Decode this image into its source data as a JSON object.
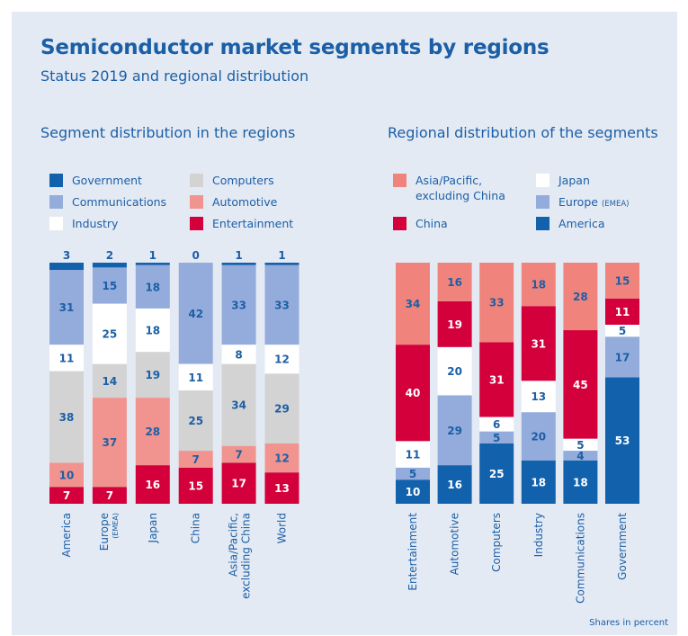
{
  "title": "Semiconductor market segments by regions",
  "subtitle": "Status 2019 and regional distribution",
  "footnote": "Shares in percent",
  "colors": {
    "Government": "#1261ad",
    "Communications": "#94acdb",
    "Industry": "#ffffff",
    "Computers": "#d3d3d3",
    "Automotive": "#f1948f",
    "Entertainment": "#d4003b",
    "Asia/Pacific, excluding China": "#f0847d",
    "Japan": "#ffffff",
    "China": "#d4003b",
    "Europe (EMEA)": "#94acdb",
    "America": "#1261ad"
  },
  "chart_data": [
    {
      "type": "bar",
      "stacked": true,
      "title": "Segment distribution in the regions",
      "legend": [
        {
          "name": "Government",
          "sub": ""
        },
        {
          "name": "Computers",
          "sub": ""
        },
        {
          "name": "Communications",
          "sub": ""
        },
        {
          "name": "Automotive",
          "sub": ""
        },
        {
          "name": "Industry",
          "sub": ""
        },
        {
          "name": "Entertainment",
          "sub": ""
        }
      ],
      "categories": [
        {
          "name": "America",
          "sub": ""
        },
        {
          "name": "Europe",
          "sub": "(EMEA)"
        },
        {
          "name": "Japan",
          "sub": ""
        },
        {
          "name": "China",
          "sub": ""
        },
        {
          "name": "Asia/Pacific,",
          "sub": "excluding China"
        },
        {
          "name": "World",
          "sub": ""
        }
      ],
      "series": [
        {
          "name": "Entertainment",
          "values": [
            7,
            7,
            16,
            15,
            17,
            13
          ]
        },
        {
          "name": "Automotive",
          "values": [
            10,
            37,
            28,
            7,
            7,
            12
          ]
        },
        {
          "name": "Computers",
          "values": [
            38,
            14,
            19,
            25,
            34,
            29
          ]
        },
        {
          "name": "Industry",
          "values": [
            11,
            25,
            18,
            11,
            8,
            12
          ]
        },
        {
          "name": "Communications",
          "values": [
            31,
            15,
            18,
            42,
            33,
            33
          ]
        },
        {
          "name": "Government",
          "values": [
            3,
            2,
            1,
            0,
            1,
            1
          ]
        }
      ],
      "ylim": [
        0,
        100
      ]
    },
    {
      "type": "bar",
      "stacked": true,
      "title": "Regional distribution of the segments",
      "legend": [
        {
          "name": "Asia/Pacific,",
          "sub": "excluding China"
        },
        {
          "name": "Japan",
          "sub": ""
        },
        {
          "name": "Europe",
          "sub": "(EMEA)"
        },
        {
          "name": "China",
          "sub": ""
        },
        {
          "name": "America",
          "sub": ""
        }
      ],
      "categories": [
        {
          "name": "Entertainment",
          "sub": ""
        },
        {
          "name": "Automotive",
          "sub": ""
        },
        {
          "name": "Computers",
          "sub": ""
        },
        {
          "name": "Industry",
          "sub": ""
        },
        {
          "name": "Communications",
          "sub": ""
        },
        {
          "name": "Government",
          "sub": ""
        }
      ],
      "series": [
        {
          "name": "America",
          "values": [
            10,
            16,
            25,
            18,
            18,
            53
          ]
        },
        {
          "name": "Europe (EMEA)",
          "values": [
            5,
            29,
            5,
            20,
            4,
            17
          ]
        },
        {
          "name": "Japan",
          "values": [
            11,
            20,
            6,
            13,
            5,
            5
          ]
        },
        {
          "name": "China",
          "values": [
            40,
            19,
            31,
            31,
            45,
            11
          ]
        },
        {
          "name": "Asia/Pacific, excluding China",
          "values": [
            34,
            16,
            33,
            18,
            28,
            15
          ]
        }
      ],
      "ylim": [
        0,
        100
      ]
    }
  ]
}
